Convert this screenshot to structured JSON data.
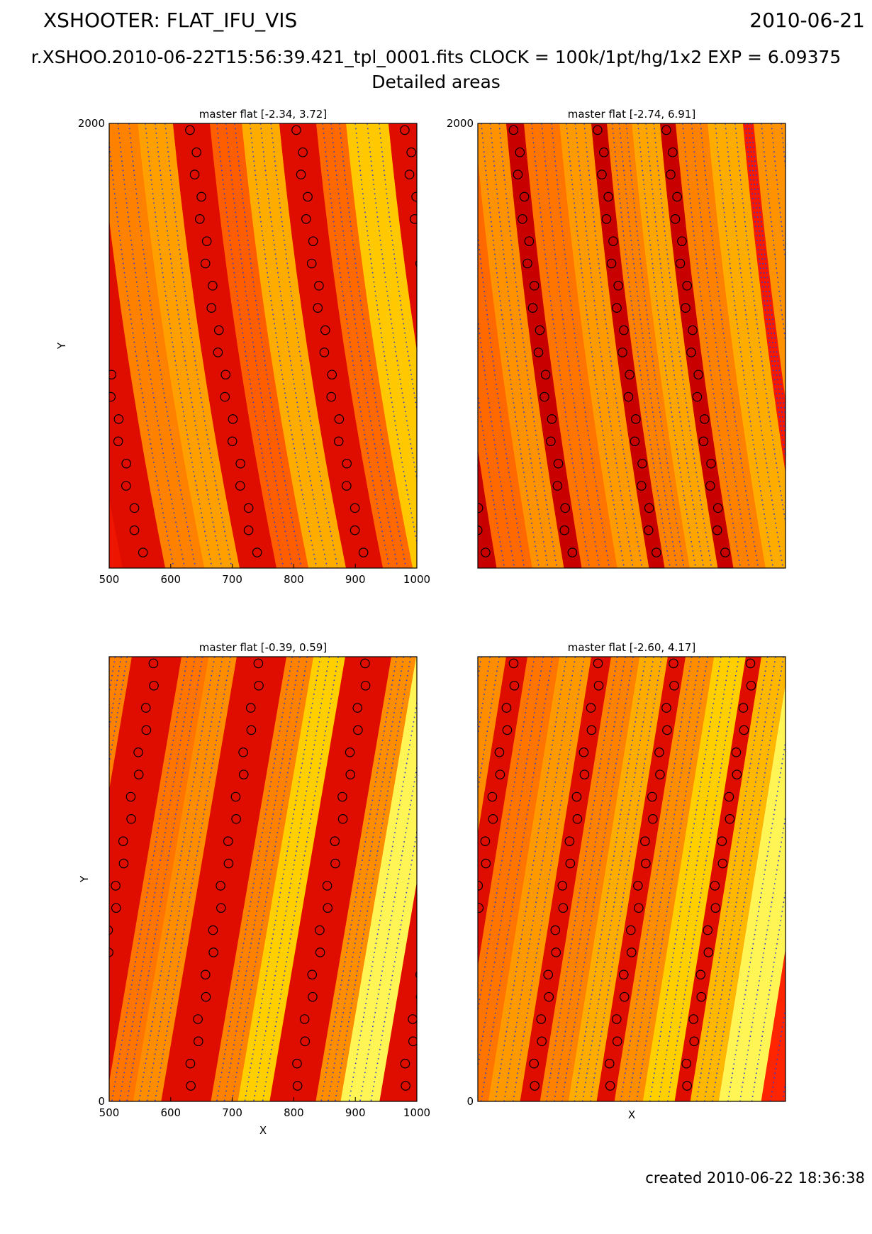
{
  "header": {
    "title": "XSHOOTER: FLAT_IFU_VIS",
    "date": "2010-06-21",
    "subtitle": "r.XSHOO.2010-06-22T15:56:39.421_tpl_0001.fits   CLOCK = 100k/1pt/hg/1x2 EXP = 6.09375",
    "section": "Detailed areas"
  },
  "footer": {
    "created": "created 2010-06-22 18:36:38"
  },
  "colors": {
    "dots": "#2a3bd0",
    "circle_edge": "#000000"
  },
  "chart_data": [
    {
      "type": "heatmap",
      "title": "master flat [-2.34, 3.72]",
      "xlim": [
        500,
        1000
      ],
      "ylim": [
        0,
        2000
      ],
      "xticks": [
        "500",
        "600",
        "700",
        "800",
        "900",
        "1000"
      ],
      "yticks": [
        "2000"
      ],
      "xlabel": "",
      "ylabel": "Y",
      "slope": 0.15,
      "curvature": 8,
      "bands": [
        {
          "x": -75,
          "w": 60,
          "level": 0.05,
          "circles": true
        },
        {
          "x": -15,
          "w": 55,
          "level": 0.55
        },
        {
          "x": 40,
          "w": 50,
          "level": 0.68
        },
        {
          "x": 90,
          "w": 52,
          "level": 0.05,
          "circles": true
        },
        {
          "x": 142,
          "w": 45,
          "level": 0.4
        },
        {
          "x": 187,
          "w": 53,
          "level": 0.72
        },
        {
          "x": 240,
          "w": 52,
          "level": 0.05,
          "circles": true
        },
        {
          "x": 292,
          "w": 42,
          "level": 0.45
        },
        {
          "x": 334,
          "w": 60,
          "level": 0.8
        },
        {
          "x": 394,
          "w": 50,
          "level": 0.05,
          "circles": true
        },
        {
          "x": 444,
          "w": 35,
          "level": 0.5
        },
        {
          "x": 479,
          "w": 60,
          "level": 0.9
        },
        {
          "x": 539,
          "w": 45,
          "level": 0.05,
          "circles": true
        }
      ]
    },
    {
      "type": "heatmap",
      "title": "master flat [-2.74, 6.91]",
      "xlim": [
        500,
        1000
      ],
      "ylim": [
        0,
        2000
      ],
      "xticks": [],
      "yticks": [
        "2000"
      ],
      "xlabel": "",
      "ylabel": "",
      "slope": 0.13,
      "curvature": 6,
      "bands": [
        {
          "x": -85,
          "w": 30,
          "level": 0.0,
          "circles": true
        },
        {
          "x": -55,
          "w": 50,
          "level": 0.45
        },
        {
          "x": -5,
          "w": 45,
          "level": 0.62
        },
        {
          "x": 40,
          "w": 25,
          "level": 0.0,
          "circles": true
        },
        {
          "x": 65,
          "w": 50,
          "level": 0.5
        },
        {
          "x": 115,
          "w": 45,
          "level": 0.66
        },
        {
          "x": 160,
          "w": 22,
          "level": 0.0,
          "circles": true
        },
        {
          "x": 182,
          "w": 35,
          "level": 0.55
        },
        {
          "x": 217,
          "w": 40,
          "level": 0.7
        },
        {
          "x": 257,
          "w": 22,
          "level": 0.0,
          "circles": true
        },
        {
          "x": 279,
          "w": 45,
          "level": 0.55
        },
        {
          "x": 324,
          "w": 50,
          "level": 0.72
        },
        {
          "x": 374,
          "w": 15,
          "level": 0.1
        },
        {
          "x": 389,
          "w": 50,
          "level": 0.62
        },
        {
          "x": 439,
          "w": 40,
          "level": 0.8
        },
        {
          "x": 479,
          "w": 15,
          "level": 0.1
        },
        {
          "x": 494,
          "w": 40,
          "level": 0.6
        },
        {
          "x": 534,
          "w": 60,
          "level": 0.0
        }
      ]
    },
    {
      "type": "heatmap",
      "title": "master flat [-0.39, 0.59]",
      "xlim": [
        500,
        1000
      ],
      "ylim": [
        0,
        2000
      ],
      "xticks": [
        "500",
        "600",
        "700",
        "800",
        "900",
        "1000"
      ],
      "yticks": [
        "0"
      ],
      "xlabel": "X",
      "ylabel": "Y",
      "slope": -0.17,
      "curvature": 0,
      "bands": [
        {
          "x": -60,
          "w": 30,
          "level": 0.05,
          "circles": true
        },
        {
          "x": -30,
          "w": 32,
          "level": 0.45
        },
        {
          "x": 2,
          "w": 30,
          "level": 0.55
        },
        {
          "x": 32,
          "w": 70,
          "level": 0.05,
          "circles": true
        },
        {
          "x": 102,
          "w": 38,
          "level": 0.5
        },
        {
          "x": 140,
          "w": 40,
          "level": 0.6
        },
        {
          "x": 180,
          "w": 70,
          "level": 0.05,
          "circles": true
        },
        {
          "x": 250,
          "w": 38,
          "level": 0.55
        },
        {
          "x": 288,
          "w": 45,
          "level": 0.82
        },
        {
          "x": 333,
          "w": 65,
          "level": 0.05,
          "circles": true
        },
        {
          "x": 398,
          "w": 35,
          "level": 0.6
        },
        {
          "x": 433,
          "w": 55,
          "level": 0.95
        },
        {
          "x": 488,
          "w": 60,
          "level": 0.05,
          "circles": true
        }
      ]
    },
    {
      "type": "heatmap",
      "title": "master flat [-2.60, 4.17]",
      "xlim": [
        500,
        1000
      ],
      "ylim": [
        0,
        2000
      ],
      "xticks": [],
      "yticks": [
        "0"
      ],
      "xlabel": "X",
      "ylabel": "",
      "slope": -0.16,
      "curvature": 0,
      "bands": [
        {
          "x": -90,
          "w": 35,
          "level": 0.05,
          "circles": true
        },
        {
          "x": -55,
          "w": 50,
          "level": 0.45
        },
        {
          "x": -5,
          "w": 45,
          "level": 0.6
        },
        {
          "x": 40,
          "w": 30,
          "level": 0.05,
          "circles": true
        },
        {
          "x": 70,
          "w": 45,
          "level": 0.5
        },
        {
          "x": 115,
          "w": 45,
          "level": 0.65
        },
        {
          "x": 160,
          "w": 28,
          "level": 0.05,
          "circles": true
        },
        {
          "x": 188,
          "w": 40,
          "level": 0.55
        },
        {
          "x": 228,
          "w": 40,
          "level": 0.72
        },
        {
          "x": 268,
          "w": 25,
          "level": 0.05,
          "circles": true
        },
        {
          "x": 293,
          "w": 40,
          "level": 0.6
        },
        {
          "x": 333,
          "w": 45,
          "level": 0.82
        },
        {
          "x": 378,
          "w": 22,
          "level": 0.05,
          "circles": true
        },
        {
          "x": 400,
          "w": 40,
          "level": 0.75
        },
        {
          "x": 440,
          "w": 60,
          "level": 0.95
        },
        {
          "x": 500,
          "w": 60,
          "level": 0.15
        }
      ]
    }
  ]
}
